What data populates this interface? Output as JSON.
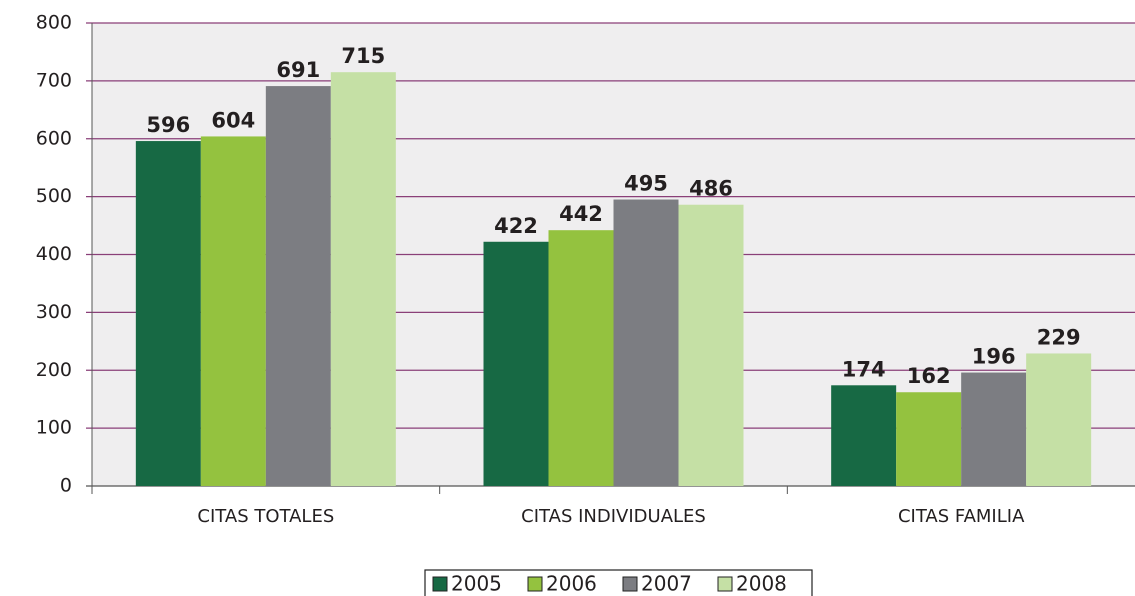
{
  "chart_data": {
    "type": "bar",
    "categories": [
      "CITAS TOTALES",
      "CITAS INDIVIDUALES",
      "CITAS FAMILIA"
    ],
    "series": [
      {
        "name": "2005",
        "color": "#176944",
        "values": [
          596,
          422,
          174
        ]
      },
      {
        "name": "2006",
        "color": "#94c23f",
        "values": [
          604,
          442,
          162
        ]
      },
      {
        "name": "2007",
        "color": "#7c7d82",
        "values": [
          691,
          495,
          196
        ]
      },
      {
        "name": "2008",
        "color": "#c5e0a5",
        "values": [
          715,
          486,
          229
        ]
      }
    ],
    "ylim": [
      0,
      800
    ],
    "yticks": [
      0,
      100,
      200,
      300,
      400,
      500,
      600,
      700,
      800
    ],
    "grid": true,
    "legend": "bottom"
  }
}
